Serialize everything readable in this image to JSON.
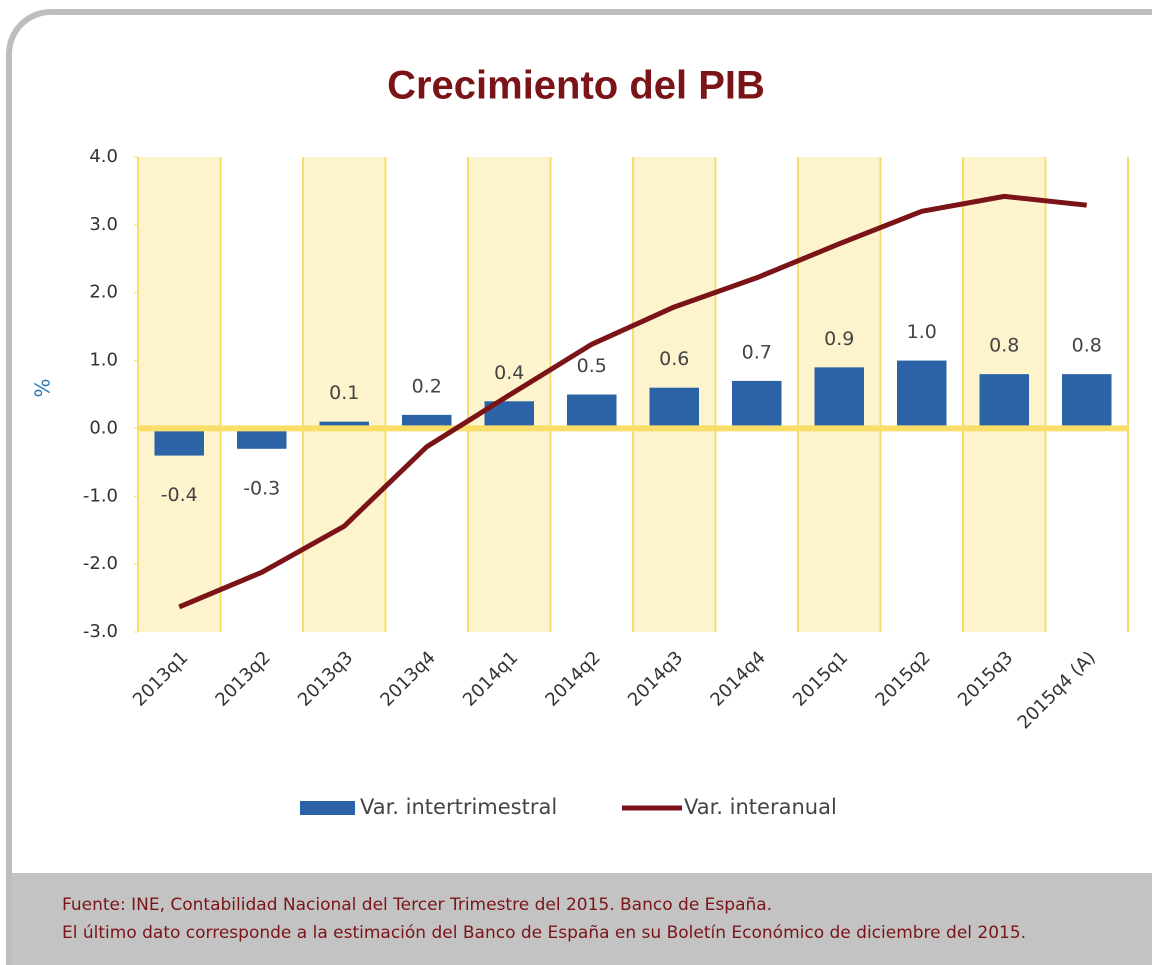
{
  "chart_data": {
    "type": "bar_line",
    "title": "Crecimiento del PIB",
    "y_label": "%",
    "categories": [
      "2013q1",
      "2013q2",
      "2013q3",
      "2013q4",
      "2014q1",
      "2014q2",
      "2014q3",
      "2014q4",
      "2015q1",
      "2015q2",
      "2015q3",
      "2015q4 (A)"
    ],
    "series": [
      {
        "name": "Var. intertrimestral",
        "type": "bar",
        "color": "#2b63a6",
        "values": [
          -0.4,
          -0.3,
          0.1,
          0.2,
          0.4,
          0.5,
          0.6,
          0.7,
          0.9,
          1.0,
          0.8,
          0.8
        ],
        "value_labels": [
          "-0.4",
          "-0.3",
          "0.1",
          "0.2",
          "0.4",
          "0.5",
          "0.6",
          "0.7",
          "0.9",
          "1.0",
          "0.8",
          "0.8"
        ]
      },
      {
        "name": "Var. interanual",
        "type": "line",
        "color": "#7b1418",
        "values": [
          -2.63,
          -2.12,
          -1.44,
          -0.27,
          0.49,
          1.24,
          1.79,
          2.22,
          2.72,
          3.2,
          3.42,
          3.29
        ]
      }
    ],
    "ylim": [
      -3,
      4
    ],
    "yticks": [
      {
        "value": -3,
        "label": "-3.0"
      },
      {
        "value": -2,
        "label": "-2.0"
      },
      {
        "value": -1,
        "label": "-1.0"
      },
      {
        "value": 0,
        "label": "0.0"
      },
      {
        "value": 1,
        "label": "1.0"
      },
      {
        "value": 2,
        "label": "2.0"
      },
      {
        "value": 3,
        "label": "3.0"
      },
      {
        "value": 4,
        "label": "4.0"
      }
    ],
    "notes": [
      "Fuente: INE, Contabilidad Nacional del Tercer Trimestre del 2015. Banco de España.",
      "El último dato corresponde a la estimación del Banco de España en su Boletín Económico de diciembre del 2015."
    ]
  }
}
